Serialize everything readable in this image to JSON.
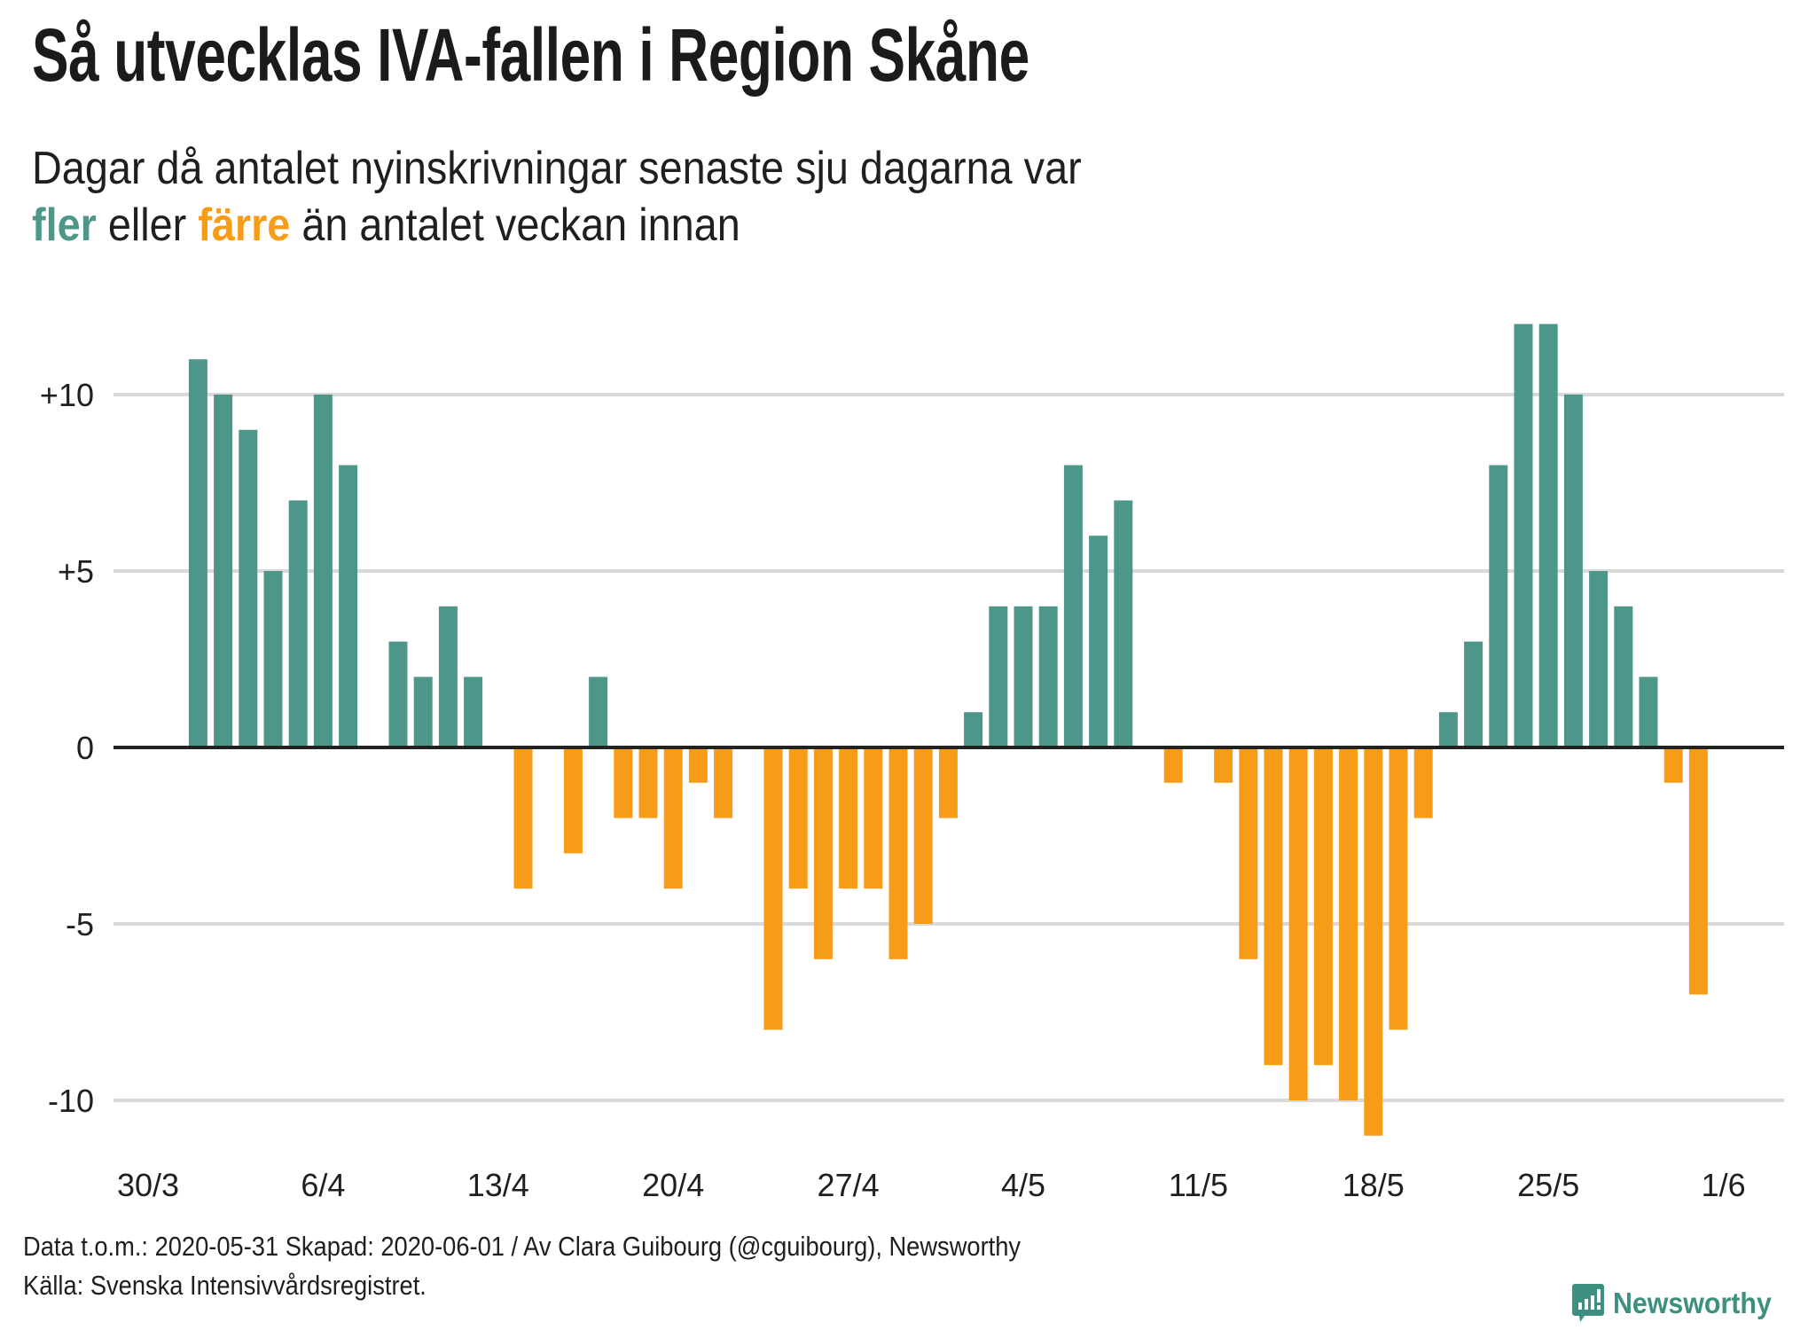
{
  "header": {
    "title": "Så utvecklas IVA-fallen i Region Skåne",
    "subtitle_line1": "Dagar då antalet nyinskrivningar senaste sju dagarna var",
    "subtitle_more": "fler",
    "subtitle_or": " eller ",
    "subtitle_fewer": "färre",
    "subtitle_rest": " än antalet veckan innan"
  },
  "colors": {
    "more": "#4c978a",
    "fewer": "#f79c18",
    "grid": "#d9d9d9",
    "zero_line": "#222222",
    "text": "#1f1f1f"
  },
  "footer": {
    "line1": "Data t.o.m.: 2020-05-31 Skapad: 2020-06-01 / Av Clara Guibourg (@cguibourg), Newsworthy",
    "line2": "Källa: Svenska Intensivvårdsregistret.",
    "logo_text": "Newsworthy",
    "logo_icon": "newsworthy-chart-bubble-icon"
  },
  "chart_data": {
    "type": "bar",
    "title": "Så utvecklas IVA-fallen i Region Skåne",
    "subtitle": "Dagar då antalet nyinskrivningar senaste sju dagarna var fler eller färre än antalet veckan innan",
    "xlabel": "",
    "ylabel": "",
    "ylim": [
      -11.5,
      12.5
    ],
    "yticks": [
      10,
      5,
      0,
      -5,
      -10
    ],
    "ytick_labels": [
      "+10",
      "+5",
      "0",
      "-5",
      "-10"
    ],
    "grid": true,
    "legend": "none (colors explained in subtitle: teal = fler, orange = färre)",
    "xtick_labels": [
      "30/3",
      "6/4",
      "13/4",
      "20/4",
      "27/4",
      "4/5",
      "11/5",
      "18/5",
      "25/5",
      "1/6"
    ],
    "categories": [
      "30/3",
      "31/3",
      "1/4",
      "2/4",
      "3/4",
      "4/4",
      "5/4",
      "6/4",
      "7/4",
      "8/4",
      "9/4",
      "10/4",
      "11/4",
      "12/4",
      "13/4",
      "14/4",
      "15/4",
      "16/4",
      "17/4",
      "18/4",
      "19/4",
      "20/4",
      "21/4",
      "22/4",
      "23/4",
      "24/4",
      "25/4",
      "26/4",
      "27/4",
      "28/4",
      "29/4",
      "30/4",
      "1/5",
      "2/5",
      "3/5",
      "4/5",
      "5/5",
      "6/5",
      "7/5",
      "8/5",
      "9/5",
      "10/5",
      "11/5",
      "12/5",
      "13/5",
      "14/5",
      "15/5",
      "16/5",
      "17/5",
      "18/5",
      "19/5",
      "20/5",
      "21/5",
      "22/5",
      "23/5",
      "24/5",
      "25/5",
      "26/5",
      "27/5",
      "28/5",
      "29/5",
      "30/5",
      "31/5",
      "1/6"
    ],
    "values": [
      0,
      0,
      11,
      10,
      9,
      5,
      7,
      10,
      8,
      0,
      3,
      2,
      4,
      2,
      0,
      -4,
      0,
      -3,
      2,
      -2,
      -2,
      -4,
      -1,
      -2,
      0,
      -8,
      -4,
      -6,
      -4,
      -4,
      -6,
      -5,
      -2,
      1,
      4,
      4,
      4,
      8,
      6,
      7,
      0,
      -1,
      0,
      -1,
      -6,
      -9,
      -10,
      -9,
      -10,
      -11,
      -8,
      -2,
      1,
      3,
      8,
      12,
      12,
      10,
      5,
      4,
      2,
      -1,
      -7,
      null
    ]
  }
}
